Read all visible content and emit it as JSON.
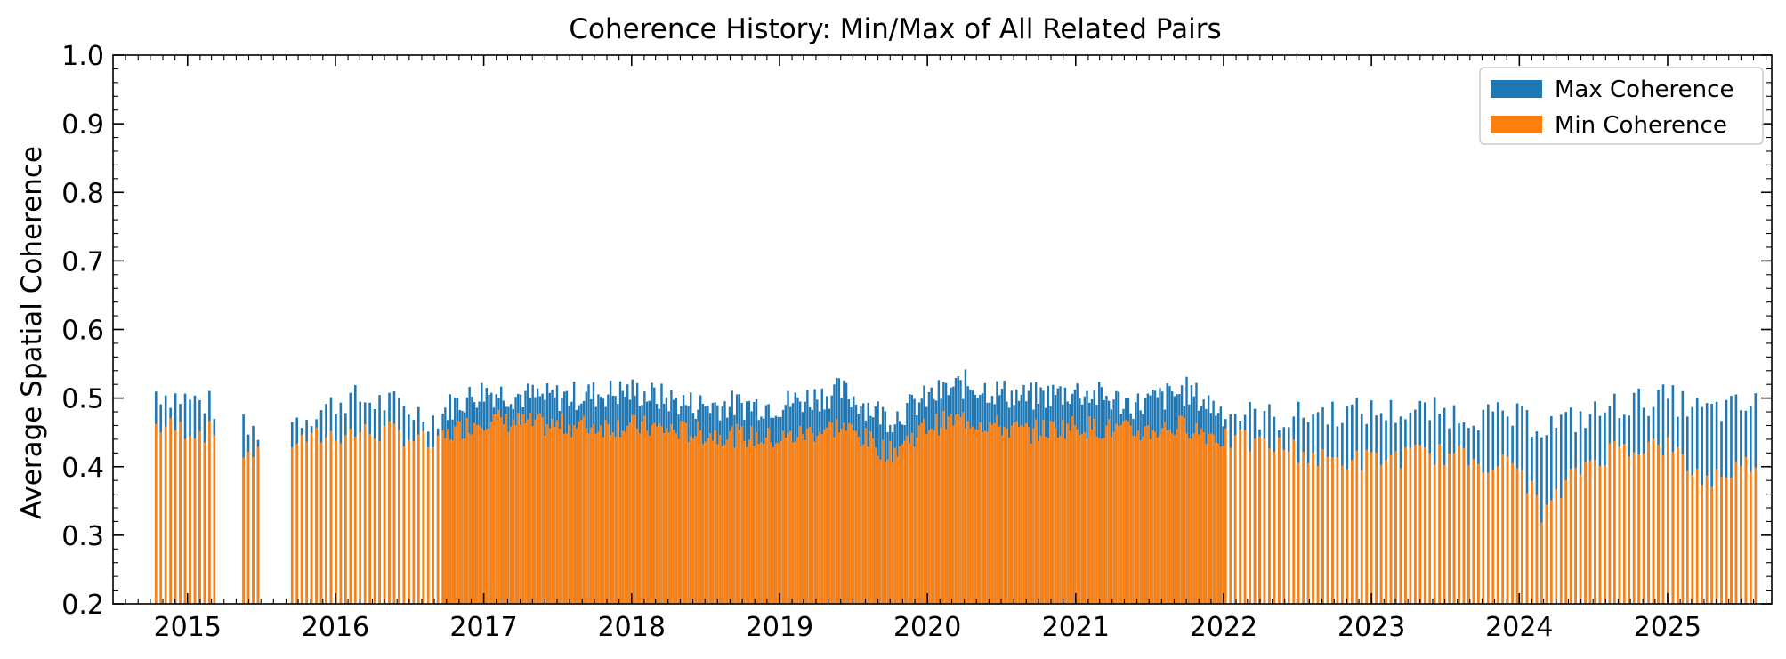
{
  "chart_data": {
    "type": "bar",
    "title": "Coherence History: Min/Max of All Related Pairs",
    "xlabel": "",
    "ylabel": "Average Spatial Coherence",
    "xlim": [
      "2014-07-01",
      "2025-09-15"
    ],
    "ylim": [
      0.2,
      1.0
    ],
    "yticks": [
      0.2,
      0.3,
      0.4,
      0.5,
      0.6,
      0.7,
      0.8,
      0.9,
      1.0
    ],
    "ytick_labels": [
      "0.2",
      "0.3",
      "0.4",
      "0.5",
      "0.6",
      "0.7",
      "0.8",
      "0.9",
      "1.0"
    ],
    "xticks": [
      "2015-01-01",
      "2016-01-01",
      "2017-01-01",
      "2018-01-01",
      "2019-01-01",
      "2020-01-01",
      "2021-01-01",
      "2022-01-01",
      "2023-01-01",
      "2024-01-01",
      "2025-01-01"
    ],
    "xtick_labels": [
      "2015",
      "2016",
      "2017",
      "2018",
      "2019",
      "2020",
      "2021",
      "2022",
      "2023",
      "2024",
      "2025"
    ],
    "legend_position": "top-right",
    "grid": false,
    "series": [
      {
        "name": "Max Coherence",
        "color": "#1f77b4"
      },
      {
        "name": "Min Coherence",
        "color": "#ff7f0e"
      }
    ],
    "profile": {
      "dates": [
        "2014-10-15",
        "2015-03-01",
        "2015-06-01",
        "2015-10-01",
        "2016-02-01",
        "2016-06-01",
        "2016-09-01",
        "2016-10-15",
        "2017-01-01",
        "2017-06-01",
        "2018-01-01",
        "2018-06-01",
        "2019-01-01",
        "2019-06-01",
        "2019-10-01",
        "2020-01-01",
        "2020-04-01",
        "2020-09-01",
        "2021-01-01",
        "2021-06-01",
        "2021-10-01",
        "2022-01-01",
        "2022-06-01",
        "2022-09-01",
        "2023-01-01",
        "2023-06-01",
        "2024-01-01",
        "2024-03-01",
        "2024-06-01",
        "2024-09-01",
        "2025-01-01",
        "2025-04-01",
        "2025-08-15"
      ],
      "max": [
        0.51,
        0.49,
        0.45,
        0.47,
        0.5,
        0.49,
        0.47,
        0.49,
        0.51,
        0.5,
        0.51,
        0.49,
        0.49,
        0.51,
        0.47,
        0.5,
        0.52,
        0.5,
        0.51,
        0.49,
        0.51,
        0.48,
        0.47,
        0.48,
        0.48,
        0.48,
        0.47,
        0.46,
        0.47,
        0.49,
        0.5,
        0.48,
        0.49
      ],
      "min": [
        0.46,
        0.45,
        0.42,
        0.44,
        0.45,
        0.45,
        0.43,
        0.45,
        0.47,
        0.46,
        0.46,
        0.45,
        0.44,
        0.46,
        0.42,
        0.46,
        0.47,
        0.45,
        0.46,
        0.45,
        0.46,
        0.44,
        0.43,
        0.41,
        0.41,
        0.42,
        0.4,
        0.33,
        0.4,
        0.43,
        0.43,
        0.38,
        0.41
      ]
    },
    "acquisition_gaps": [
      [
        "2015-03-20",
        "2015-05-15"
      ],
      [
        "2015-07-01",
        "2015-09-10"
      ]
    ]
  }
}
